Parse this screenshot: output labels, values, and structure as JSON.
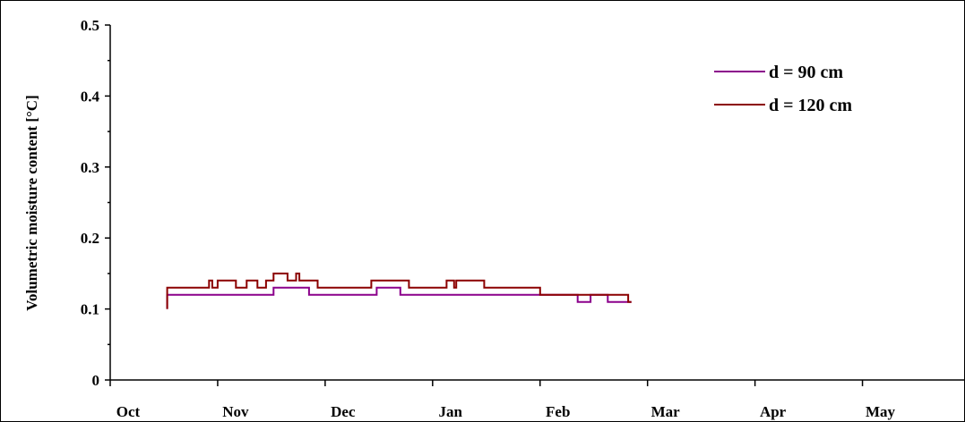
{
  "chart_data": {
    "type": "line",
    "title": "",
    "xlabel": "",
    "ylabel": "Volumetric moisture content [°C]",
    "x_categories": [
      "Oct",
      "Nov",
      "Dec",
      "Jan",
      "Feb",
      "Mar",
      "Apr",
      "May"
    ],
    "xlim": [
      0,
      8
    ],
    "ylim": [
      0,
      0.5
    ],
    "y_ticks": [
      0,
      0.1,
      0.2,
      0.3,
      0.4,
      0.5
    ],
    "y_tick_labels": [
      "0",
      "0.1",
      "0.2",
      "0.3",
      "0.4",
      "0.5"
    ],
    "grid": false,
    "legend_position": "top-right",
    "series": [
      {
        "name": "d = 90 cm",
        "color": "#8b008b",
        "points": [
          [
            0.53,
            0.1
          ],
          [
            0.53,
            0.12
          ],
          [
            1.52,
            0.12
          ],
          [
            1.52,
            0.13
          ],
          [
            1.85,
            0.13
          ],
          [
            1.85,
            0.12
          ],
          [
            2.48,
            0.12
          ],
          [
            2.48,
            0.13
          ],
          [
            2.7,
            0.13
          ],
          [
            2.7,
            0.12
          ],
          [
            3.35,
            0.12
          ],
          [
            3.5,
            0.12
          ],
          [
            4.0,
            0.12
          ],
          [
            4.0,
            0.12
          ],
          [
            4.35,
            0.12
          ],
          [
            4.35,
            0.11
          ],
          [
            4.47,
            0.11
          ],
          [
            4.47,
            0.12
          ],
          [
            4.63,
            0.12
          ],
          [
            4.63,
            0.11
          ],
          [
            4.85,
            0.11
          ]
        ]
      },
      {
        "name": "d = 120 cm",
        "color": "#8b0000",
        "points": [
          [
            0.53,
            0.1
          ],
          [
            0.53,
            0.13
          ],
          [
            0.92,
            0.13
          ],
          [
            0.92,
            0.14
          ],
          [
            0.95,
            0.14
          ],
          [
            0.95,
            0.13
          ],
          [
            1.0,
            0.13
          ],
          [
            1.0,
            0.14
          ],
          [
            1.17,
            0.14
          ],
          [
            1.17,
            0.13
          ],
          [
            1.27,
            0.13
          ],
          [
            1.27,
            0.14
          ],
          [
            1.37,
            0.14
          ],
          [
            1.37,
            0.13
          ],
          [
            1.45,
            0.13
          ],
          [
            1.45,
            0.14
          ],
          [
            1.52,
            0.14
          ],
          [
            1.52,
            0.15
          ],
          [
            1.65,
            0.15
          ],
          [
            1.65,
            0.14
          ],
          [
            1.73,
            0.14
          ],
          [
            1.73,
            0.15
          ],
          [
            1.76,
            0.15
          ],
          [
            1.76,
            0.14
          ],
          [
            1.93,
            0.14
          ],
          [
            1.93,
            0.13
          ],
          [
            2.43,
            0.13
          ],
          [
            2.43,
            0.14
          ],
          [
            2.78,
            0.14
          ],
          [
            2.78,
            0.13
          ],
          [
            3.13,
            0.13
          ],
          [
            3.13,
            0.14
          ],
          [
            3.2,
            0.14
          ],
          [
            3.2,
            0.13
          ],
          [
            3.22,
            0.13
          ],
          [
            3.22,
            0.14
          ],
          [
            3.48,
            0.14
          ],
          [
            3.48,
            0.13
          ],
          [
            4.0,
            0.13
          ],
          [
            4.0,
            0.12
          ],
          [
            4.82,
            0.12
          ],
          [
            4.82,
            0.11
          ],
          [
            4.85,
            0.11
          ]
        ]
      }
    ]
  }
}
